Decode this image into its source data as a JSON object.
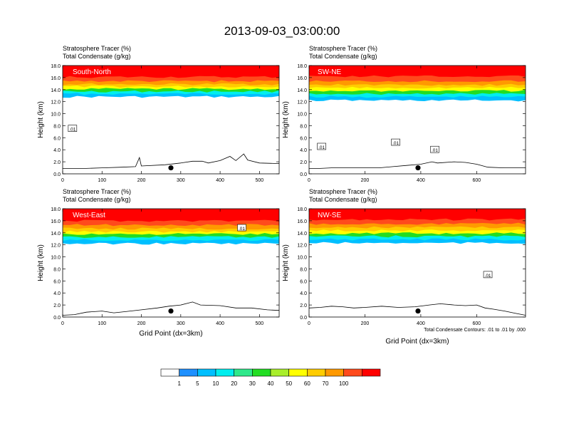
{
  "title": "2013-09-03_03:00:00",
  "footnote": "Total Condensate Contours: .01 to .01 by .000",
  "colorbar": {
    "colors": [
      "#ffffff",
      "#1e90ff",
      "#00bfff",
      "#00eeee",
      "#2ee88a",
      "#22dd22",
      "#a8ee2a",
      "#ffff00",
      "#ffcc00",
      "#ff9900",
      "#ff4a1c",
      "#ff0000"
    ],
    "labels": [
      "1",
      "5",
      "10",
      "20",
      "30",
      "40",
      "50",
      "60",
      "70",
      "100"
    ]
  },
  "chart_data": [
    {
      "type": "heatmap",
      "panel_label": "South-North",
      "subtitle_line1": "Stratosphere Tracer   (%)",
      "subtitle_line2": "Total Condensate   (g/kg)",
      "ylabel": "Height (km)",
      "xlabel": "",
      "xlim": [
        0,
        550
      ],
      "ylim": [
        0,
        18
      ],
      "xticks": [
        "0",
        "100",
        "200",
        "300",
        "400",
        "500"
      ],
      "xtick_values": [
        0,
        100,
        200,
        300,
        400,
        500
      ],
      "yticks": [
        "0.0",
        "2.0",
        "4.0",
        "6.0",
        "8.0",
        "10.0",
        "12.0",
        "14.0",
        "16.0",
        "18.0"
      ],
      "tracer_bottom_km": 12.8,
      "marker_x": 275,
      "terrain": [
        [
          0,
          0.9
        ],
        [
          30,
          0.9
        ],
        [
          60,
          0.9
        ],
        [
          100,
          1.0
        ],
        [
          150,
          1.1
        ],
        [
          185,
          1.2
        ],
        [
          195,
          2.7
        ],
        [
          200,
          1.3
        ],
        [
          260,
          1.5
        ],
        [
          300,
          1.8
        ],
        [
          330,
          2.1
        ],
        [
          355,
          2.1
        ],
        [
          370,
          1.8
        ],
        [
          400,
          2.2
        ],
        [
          425,
          2.9
        ],
        [
          440,
          2.2
        ],
        [
          460,
          3.3
        ],
        [
          470,
          2.3
        ],
        [
          500,
          1.8
        ],
        [
          550,
          1.7
        ]
      ],
      "contour_labels": [
        {
          "text": ".01",
          "x": 25,
          "y": 7.5
        }
      ],
      "colorbands": [
        {
          "km": 12.8,
          "color": "#00bfff"
        },
        {
          "km": 13.3,
          "color": "#00eeee"
        },
        {
          "km": 13.7,
          "color": "#22dd22"
        },
        {
          "km": 14.1,
          "color": "#ffff00"
        },
        {
          "km": 14.5,
          "color": "#ffcc00"
        },
        {
          "km": 14.9,
          "color": "#ff9900"
        },
        {
          "km": 15.4,
          "color": "#ff4a1c"
        },
        {
          "km": 16.1,
          "color": "#ff0000"
        }
      ]
    },
    {
      "type": "heatmap",
      "panel_label": "SW-NE",
      "subtitle_line1": "Stratosphere Tracer   (%)",
      "subtitle_line2": "Total Condensate   (g/kg)",
      "ylabel": "Height (km)",
      "xlabel": "",
      "xlim": [
        0,
        775
      ],
      "ylim": [
        0,
        18
      ],
      "xticks": [
        "0",
        "200",
        "400",
        "600"
      ],
      "xtick_values": [
        0,
        200,
        400,
        600
      ],
      "yticks": [
        "0.0",
        "2.0",
        "4.0",
        "6.0",
        "8.0",
        "10.0",
        "12.0",
        "14.0",
        "16.0",
        "18.0"
      ],
      "tracer_bottom_km": 12.2,
      "marker_x": 390,
      "terrain": [
        [
          0,
          0.9
        ],
        [
          40,
          0.9
        ],
        [
          80,
          1.0
        ],
        [
          150,
          1.0
        ],
        [
          250,
          1.0
        ],
        [
          300,
          1.2
        ],
        [
          350,
          1.4
        ],
        [
          400,
          1.6
        ],
        [
          440,
          2.0
        ],
        [
          460,
          1.8
        ],
        [
          520,
          2.0
        ],
        [
          560,
          1.9
        ],
        [
          600,
          1.6
        ],
        [
          640,
          1.1
        ],
        [
          700,
          1.0
        ],
        [
          775,
          1.0
        ]
      ],
      "contour_labels": [
        {
          "text": ".01",
          "x": 45,
          "y": 4.5
        },
        {
          "text": ".01",
          "x": 310,
          "y": 5.2
        },
        {
          "text": ".01",
          "x": 450,
          "y": 4.0
        }
      ],
      "colorbands": [
        {
          "km": 12.2,
          "color": "#00bfff"
        },
        {
          "km": 12.8,
          "color": "#00eeee"
        },
        {
          "km": 13.3,
          "color": "#22dd22"
        },
        {
          "km": 13.8,
          "color": "#ffff00"
        },
        {
          "km": 14.3,
          "color": "#ffcc00"
        },
        {
          "km": 14.8,
          "color": "#ff9900"
        },
        {
          "km": 15.4,
          "color": "#ff4a1c"
        },
        {
          "km": 16.2,
          "color": "#ff0000"
        }
      ]
    },
    {
      "type": "heatmap",
      "panel_label": "West-East",
      "subtitle_line1": "Stratosphere Tracer   (%)",
      "subtitle_line2": "Total Condensate   (g/kg)",
      "ylabel": "Height (km)",
      "xlabel": "Grid Point (dx=3km)",
      "xlim": [
        0,
        550
      ],
      "ylim": [
        0,
        18
      ],
      "xticks": [
        "0",
        "100",
        "200",
        "300",
        "400",
        "500"
      ],
      "xtick_values": [
        0,
        100,
        200,
        300,
        400,
        500
      ],
      "yticks": [
        "0.0",
        "2.0",
        "4.0",
        "6.0",
        "8.0",
        "10.0",
        "12.0",
        "14.0",
        "16.0",
        "18.0"
      ],
      "tracer_bottom_km": 12.2,
      "marker_x": 275,
      "terrain": [
        [
          0,
          0.3
        ],
        [
          30,
          0.4
        ],
        [
          60,
          0.8
        ],
        [
          100,
          1.0
        ],
        [
          130,
          0.7
        ],
        [
          160,
          0.9
        ],
        [
          200,
          1.2
        ],
        [
          240,
          1.5
        ],
        [
          270,
          1.8
        ],
        [
          300,
          2.0
        ],
        [
          330,
          2.5
        ],
        [
          350,
          2.0
        ],
        [
          400,
          1.9
        ],
        [
          440,
          1.5
        ],
        [
          480,
          1.5
        ],
        [
          520,
          1.2
        ],
        [
          550,
          1.1
        ]
      ],
      "contour_labels": [
        {
          "text": ".01",
          "x": 455,
          "y": 14.8
        }
      ],
      "colorbands": [
        {
          "km": 12.2,
          "color": "#00bfff"
        },
        {
          "km": 12.8,
          "color": "#00eeee"
        },
        {
          "km": 13.3,
          "color": "#22dd22"
        },
        {
          "km": 13.8,
          "color": "#ffff00"
        },
        {
          "km": 14.2,
          "color": "#ffcc00"
        },
        {
          "km": 14.7,
          "color": "#ff9900"
        },
        {
          "km": 15.3,
          "color": "#ff4a1c"
        },
        {
          "km": 16.0,
          "color": "#ff0000"
        }
      ]
    },
    {
      "type": "heatmap",
      "panel_label": "NW-SE",
      "subtitle_line1": "Stratosphere Tracer   (%)",
      "subtitle_line2": "Total Condensate   (g/kg)",
      "ylabel": "Height (km)",
      "xlabel": "Grid Point (dx=3km)",
      "xlim": [
        0,
        775
      ],
      "ylim": [
        0,
        18
      ],
      "xticks": [
        "0",
        "200",
        "400",
        "600"
      ],
      "xtick_values": [
        0,
        200,
        400,
        600
      ],
      "yticks": [
        "0.0",
        "2.0",
        "4.0",
        "6.0",
        "8.0",
        "10.0",
        "12.0",
        "14.0",
        "16.0",
        "18.0"
      ],
      "tracer_bottom_km": 12.3,
      "marker_x": 390,
      "terrain": [
        [
          0,
          1.5
        ],
        [
          40,
          1.6
        ],
        [
          80,
          1.8
        ],
        [
          120,
          1.7
        ],
        [
          160,
          1.5
        ],
        [
          200,
          1.6
        ],
        [
          260,
          1.8
        ],
        [
          320,
          1.6
        ],
        [
          380,
          1.7
        ],
        [
          430,
          2.0
        ],
        [
          470,
          2.2
        ],
        [
          520,
          2.0
        ],
        [
          560,
          1.9
        ],
        [
          600,
          2.0
        ],
        [
          630,
          1.5
        ],
        [
          660,
          1.3
        ],
        [
          700,
          1.0
        ],
        [
          740,
          0.6
        ],
        [
          775,
          0.3
        ]
      ],
      "contour_labels": [
        {
          "text": ".01",
          "x": 640,
          "y": 7.0
        }
      ],
      "colorbands": [
        {
          "km": 12.3,
          "color": "#00bfff"
        },
        {
          "km": 12.9,
          "color": "#00eeee"
        },
        {
          "km": 13.4,
          "color": "#22dd22"
        },
        {
          "km": 13.9,
          "color": "#ffff00"
        },
        {
          "km": 14.4,
          "color": "#ffcc00"
        },
        {
          "km": 14.9,
          "color": "#ff9900"
        },
        {
          "km": 15.5,
          "color": "#ff4a1c"
        },
        {
          "km": 16.2,
          "color": "#ff0000"
        }
      ]
    }
  ]
}
